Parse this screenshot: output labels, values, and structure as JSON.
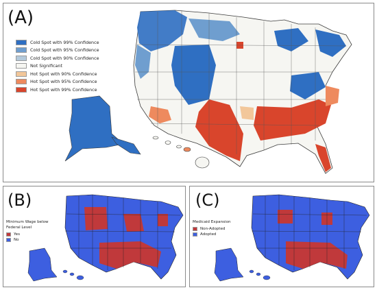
{
  "panel_a": {
    "label": "(A)",
    "legend": [
      {
        "label": "Cold Spot with 99% Confidence",
        "color": "#2f6fc2"
      },
      {
        "label": "Cold Spot with 95% Confidence",
        "color": "#6f9ecf"
      },
      {
        "label": "Cold Spot with 90% Confidence",
        "color": "#b3c9db"
      },
      {
        "label": "Not Significant",
        "color": "#f6f6f2"
      },
      {
        "label": "Hot Spot with 90% Confidence",
        "color": "#f2c79a"
      },
      {
        "label": "Hot Spot with 95% Confidence",
        "color": "#ee8a5e"
      },
      {
        "label": "Hot Spot with 99% Confidence",
        "color": "#d9452c"
      }
    ]
  },
  "panel_b": {
    "label": "(B)",
    "legend_title": "Minimum Wage below Federal Level",
    "legend": [
      {
        "label": "Yes",
        "color": "#c0393b"
      },
      {
        "label": "No",
        "color": "#3d5fe0"
      }
    ]
  },
  "panel_c": {
    "label": "(C)",
    "legend_title": "Medicaid Expansion",
    "legend": [
      {
        "label": "Non-Adopted",
        "color": "#c0393b"
      },
      {
        "label": "Adopted",
        "color": "#3d5fe0"
      }
    ]
  }
}
